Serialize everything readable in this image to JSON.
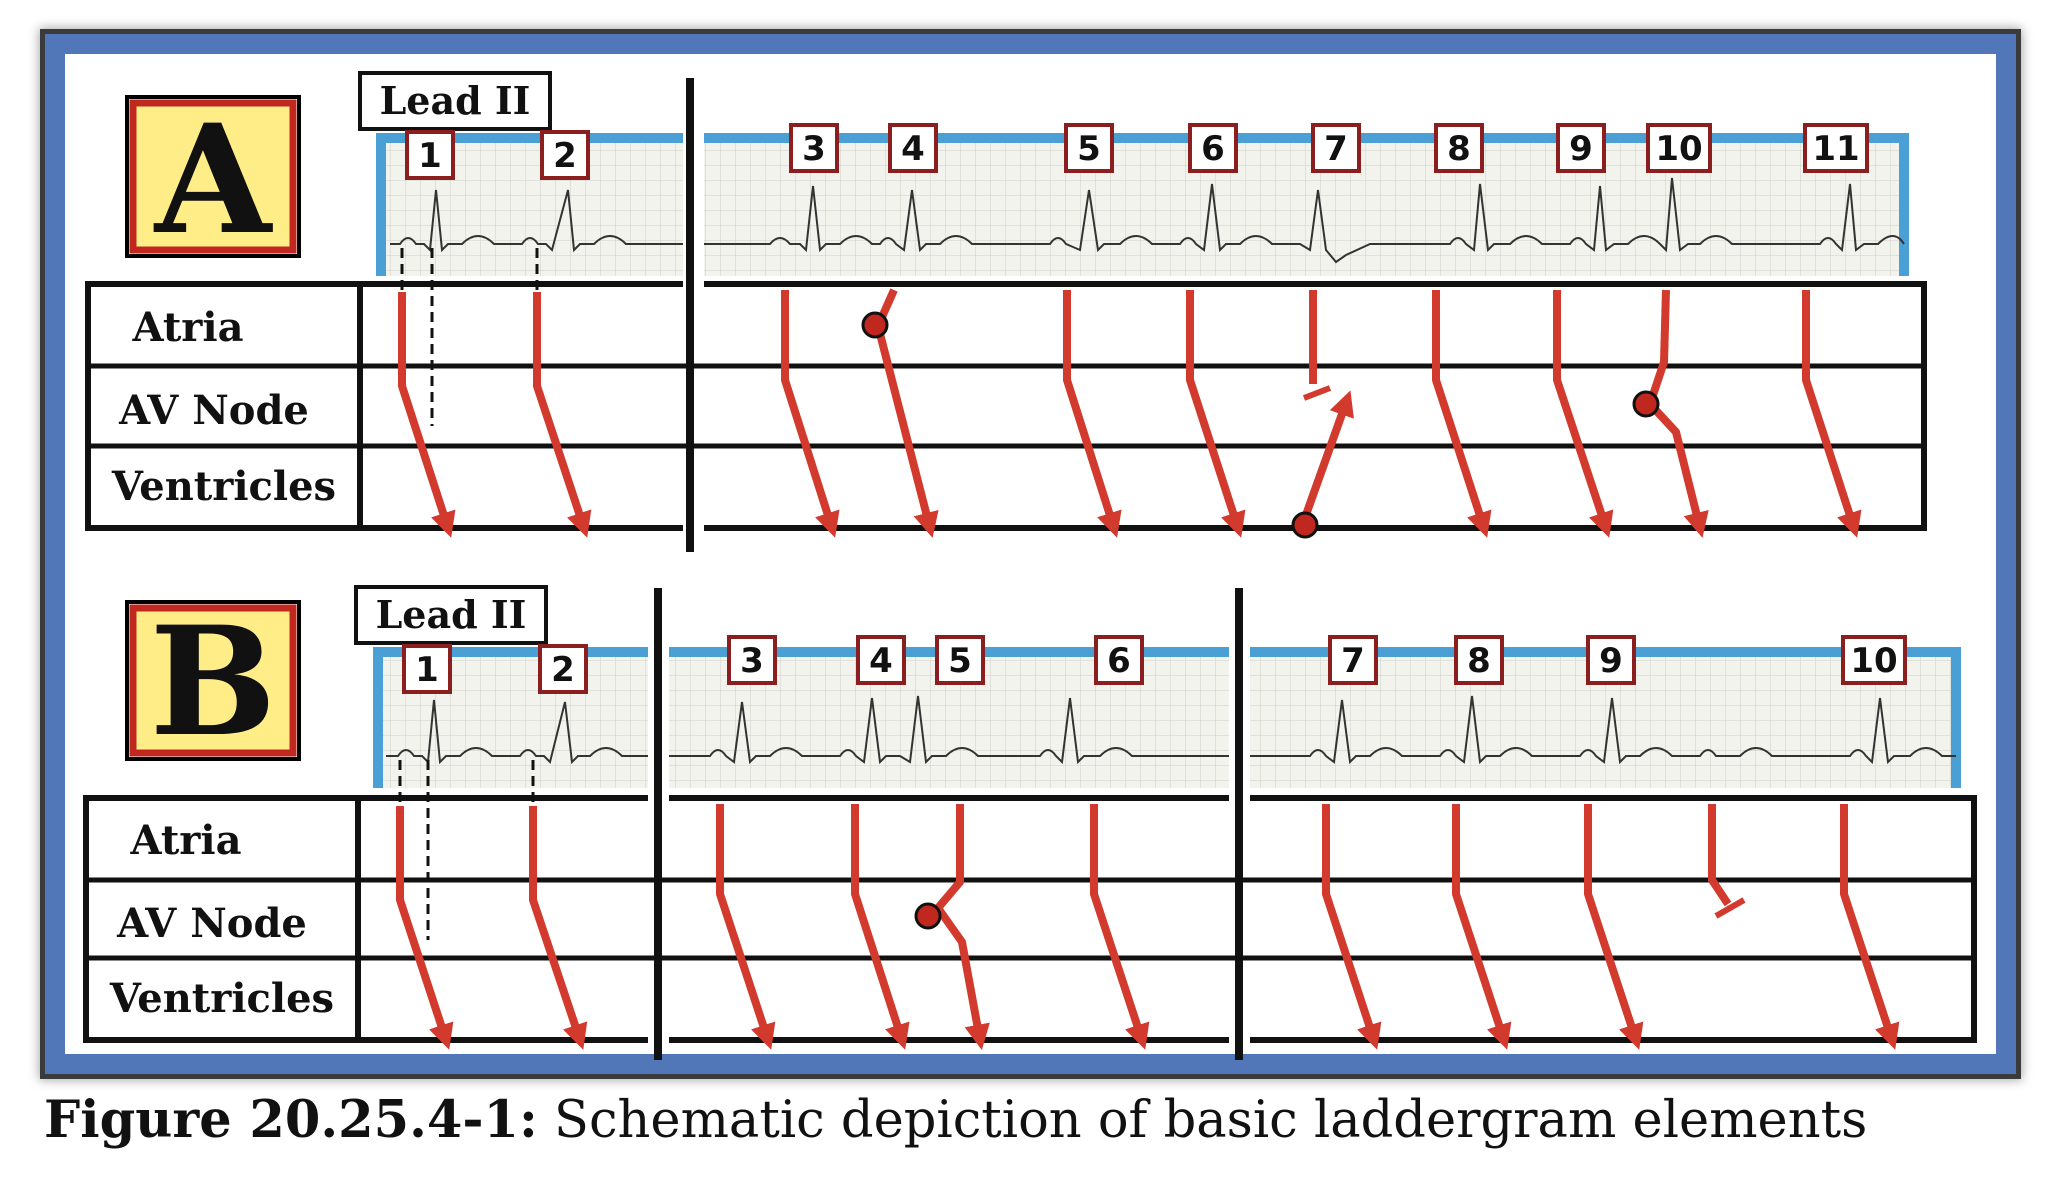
{
  "panels": [
    {
      "id": "A",
      "letter": "A",
      "lead_label": "Lead II",
      "rows": [
        "Atria",
        "AV Node",
        "Ventricles"
      ],
      "beat_numbers": [
        "1",
        "2",
        "3",
        "4",
        "5",
        "6",
        "7",
        "8",
        "9",
        "10",
        "11"
      ]
    },
    {
      "id": "B",
      "letter": "B",
      "lead_label": "Lead II",
      "rows": [
        "Atria",
        "AV Node",
        "Ventricles"
      ],
      "beat_numbers": [
        "1",
        "2",
        "3",
        "4",
        "5",
        "6",
        "7",
        "8",
        "9",
        "10"
      ]
    }
  ],
  "caption": {
    "label": "Figure 20.25.4-1:",
    "text": "Schematic depiction of basic laddergram elements"
  },
  "colors": {
    "frame": "#5177b8",
    "ecg_strip_border": "#4a9fd5",
    "arrow": "#d23a2e",
    "origin_dot": "#c0281f",
    "letter_box_fill": "#ffee88",
    "letter_box_border": "#c0281f"
  }
}
